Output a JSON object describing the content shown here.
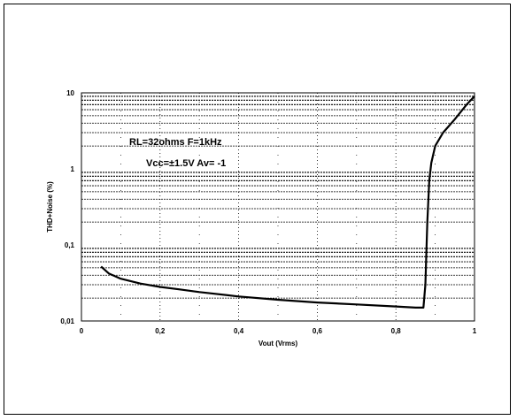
{
  "chart_data": {
    "type": "line",
    "xlabel": "Vout (Vrms)",
    "ylabel": "THD+Noise (%)",
    "xscale": "linear",
    "yscale": "log",
    "xlim": [
      0,
      1
    ],
    "ylim": [
      0.01,
      10
    ],
    "grid": true,
    "x_ticks": [
      {
        "value": 0,
        "label": "0"
      },
      {
        "value": 0.2,
        "label": "0,2"
      },
      {
        "value": 0.4,
        "label": "0,4"
      },
      {
        "value": 0.6,
        "label": "0,6"
      },
      {
        "value": 0.8,
        "label": "0,8"
      },
      {
        "value": 1,
        "label": "1"
      }
    ],
    "y_ticks": [
      {
        "value": 0.01,
        "label": "0,01"
      },
      {
        "value": 0.1,
        "label": "0,1"
      },
      {
        "value": 1,
        "label": "1"
      },
      {
        "value": 10,
        "label": "10"
      }
    ],
    "annotations": [
      "RL=32ohms  F=1kHz",
      "Vcc=±1.5V   Av= -1"
    ],
    "series": [
      {
        "color": "#000000",
        "x": [
          0.05,
          0.07,
          0.1,
          0.15,
          0.2,
          0.25,
          0.3,
          0.4,
          0.5,
          0.6,
          0.7,
          0.8,
          0.85,
          0.87,
          0.875,
          0.88,
          0.885,
          0.89,
          0.9,
          0.92,
          0.95,
          0.98,
          1.0
        ],
        "y": [
          0.052,
          0.042,
          0.036,
          0.031,
          0.028,
          0.026,
          0.024,
          0.021,
          0.019,
          0.0175,
          0.0165,
          0.0155,
          0.015,
          0.015,
          0.03,
          0.2,
          0.7,
          1.2,
          2.0,
          3.0,
          4.5,
          7.0,
          9.0
        ]
      }
    ]
  }
}
